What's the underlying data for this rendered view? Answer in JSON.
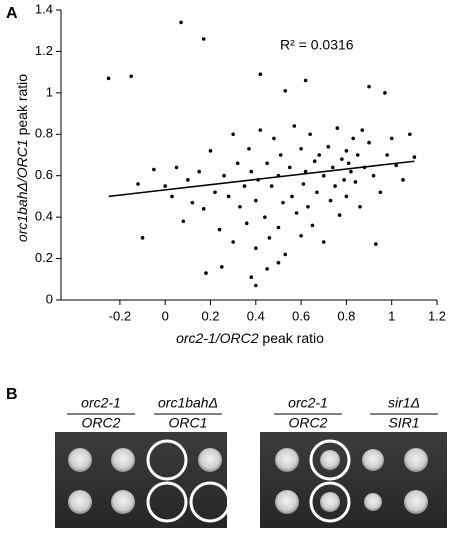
{
  "chart_data": {
    "type": "scatter",
    "annotation": "R² = 0.0316",
    "xlabel": [
      {
        "text": "orc2-1/ORC2",
        "italic": true
      },
      {
        "text": " peak ratio",
        "italic": false
      }
    ],
    "ylabel": [
      {
        "text": "orc1bahΔ/ORC1",
        "italic": true
      },
      {
        "text": " peak ratio",
        "italic": false
      }
    ],
    "xlim": [
      -0.46,
      1.2
    ],
    "xticks": [
      -0.2,
      0,
      0.2,
      0.4,
      0.6,
      0.8,
      1,
      1.2
    ],
    "ylim": [
      0,
      1.4
    ],
    "yticks": [
      0,
      0.2,
      0.4,
      0.6,
      0.8,
      1,
      1.2,
      1.4
    ],
    "color": "#000000",
    "x": [
      -0.12,
      -0.05,
      0.0,
      0.03,
      0.05,
      0.08,
      0.1,
      0.12,
      0.15,
      0.17,
      0.2,
      0.22,
      0.24,
      0.26,
      0.28,
      0.3,
      0.3,
      0.32,
      0.33,
      0.35,
      0.36,
      0.37,
      0.38,
      0.4,
      0.4,
      0.41,
      0.42,
      0.44,
      0.45,
      0.46,
      0.47,
      0.48,
      0.5,
      0.5,
      0.51,
      0.52,
      0.53,
      0.55,
      0.56,
      0.57,
      0.58,
      0.6,
      0.6,
      0.61,
      0.62,
      0.63,
      0.64,
      0.65,
      0.66,
      0.67,
      0.68,
      0.7,
      0.7,
      0.72,
      0.73,
      0.74,
      0.75,
      0.76,
      0.77,
      0.78,
      0.79,
      0.8,
      0.8,
      0.81,
      0.82,
      0.83,
      0.84,
      0.85,
      0.86,
      0.87,
      0.88,
      0.9,
      0.92,
      0.95,
      0.98,
      1.0,
      1.02,
      1.05,
      1.08,
      1.1,
      -0.25,
      -0.15,
      0.07,
      0.17,
      0.42,
      0.53,
      0.9,
      0.97,
      0.62,
      -0.1,
      0.18,
      0.4,
      0.38,
      0.93,
      0.5,
      0.25,
      0.45
    ],
    "y": [
      0.56,
      0.63,
      0.55,
      0.5,
      0.64,
      0.38,
      0.58,
      0.47,
      0.62,
      0.44,
      0.72,
      0.52,
      0.34,
      0.6,
      0.5,
      0.8,
      0.28,
      0.66,
      0.45,
      0.55,
      0.37,
      0.73,
      0.62,
      0.48,
      0.25,
      0.58,
      0.82,
      0.4,
      0.66,
      0.3,
      0.55,
      0.78,
      0.6,
      0.35,
      0.7,
      0.47,
      0.22,
      0.64,
      0.5,
      0.84,
      0.42,
      0.73,
      0.31,
      0.56,
      0.62,
      0.45,
      0.8,
      0.36,
      0.67,
      0.52,
      0.7,
      0.6,
      0.28,
      0.74,
      0.48,
      0.64,
      0.55,
      0.83,
      0.41,
      0.68,
      0.58,
      0.72,
      0.5,
      0.66,
      0.62,
      0.78,
      0.57,
      0.7,
      0.45,
      0.82,
      0.64,
      0.76,
      0.6,
      0.52,
      0.7,
      0.78,
      0.65,
      0.58,
      0.8,
      0.69,
      1.07,
      1.08,
      1.34,
      1.26,
      1.09,
      1.01,
      1.03,
      1.0,
      1.06,
      0.3,
      0.13,
      0.07,
      0.11,
      0.27,
      0.18,
      0.16,
      0.15
    ],
    "trendline": {
      "x": [
        -0.25,
        1.1
      ],
      "y": [
        0.5,
        0.67
      ]
    }
  },
  "panel_labels": [
    "A",
    "B"
  ],
  "plates": [
    {
      "groups": [
        {
          "top": "orc2-1",
          "bottom": "ORC2"
        },
        {
          "top": "orc1bahΔ",
          "bottom": "ORC1"
        }
      ]
    },
    {
      "groups": [
        {
          "top": "orc2-1",
          "bottom": "ORC2"
        },
        {
          "top": "sir1Δ",
          "bottom": "SIR1"
        }
      ]
    }
  ]
}
